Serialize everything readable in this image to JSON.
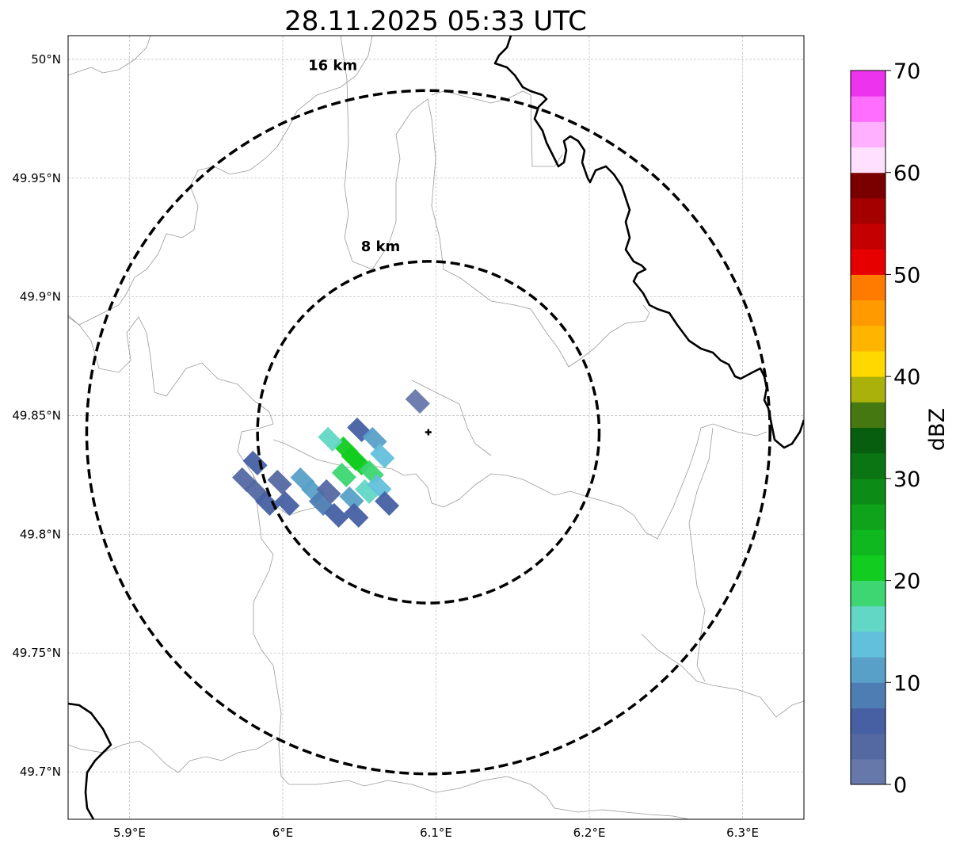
{
  "title": "28.11.2025 05:33 UTC",
  "map": {
    "lon_range": [
      5.86,
      6.34
    ],
    "lat_range": [
      49.68,
      50.01
    ],
    "lon_ticks": [
      {
        "value": 5.9,
        "label": "5.9°E"
      },
      {
        "value": 6.0,
        "label": "6°E"
      },
      {
        "value": 6.1,
        "label": "6.1°E"
      },
      {
        "value": 6.2,
        "label": "6.2°E"
      },
      {
        "value": 6.3,
        "label": "6.3°E"
      }
    ],
    "lat_ticks": [
      {
        "value": 49.7,
        "label": "49.7°N"
      },
      {
        "value": 49.75,
        "label": "49.75°N"
      },
      {
        "value": 49.8,
        "label": "49.8°N"
      },
      {
        "value": 49.85,
        "label": "49.85°N"
      },
      {
        "value": 49.9,
        "label": "49.9°N"
      },
      {
        "value": 49.95,
        "label": "49.95°N"
      },
      {
        "value": 50.0,
        "label": "50°N"
      }
    ],
    "radar_site": {
      "lon": 6.095,
      "lat": 49.843
    },
    "range_rings": [
      {
        "label": "8 km",
        "radius_km": 8
      },
      {
        "label": "16 km",
        "radius_km": 16
      }
    ]
  },
  "colorbar": {
    "label": "dBZ",
    "min": 0,
    "max": 70,
    "ticks": [
      {
        "value": 0,
        "label": "0"
      },
      {
        "value": 10,
        "label": "10"
      },
      {
        "value": 20,
        "label": "20"
      },
      {
        "value": 30,
        "label": "30"
      },
      {
        "value": 40,
        "label": "40"
      },
      {
        "value": 50,
        "label": "50"
      },
      {
        "value": 60,
        "label": "60"
      },
      {
        "value": 70,
        "label": "70"
      }
    ],
    "colors": [
      "#6677aa",
      "#5468a2",
      "#4660a3",
      "#4e7db3",
      "#58a0c8",
      "#63c0dc",
      "#63d7c5",
      "#3dd673",
      "#12cc20",
      "#10b820",
      "#0ea31a",
      "#0c8c16",
      "#0a7512",
      "#075e0e",
      "#457810",
      "#aab10a",
      "#ffd800",
      "#ffb400",
      "#ff9b00",
      "#ff7b00",
      "#e60000",
      "#c40000",
      "#a50000",
      "#7a0000",
      "#ffe0ff",
      "#ffb0ff",
      "#ff6eff",
      "#ee33ee"
    ]
  },
  "echoes": [
    {
      "lon": 5.975,
      "lat": 49.823,
      "dbz": 4
    },
    {
      "lon": 5.983,
      "lat": 49.818,
      "dbz": 3
    },
    {
      "lon": 5.99,
      "lat": 49.813,
      "dbz": 7
    },
    {
      "lon": 5.998,
      "lat": 49.822,
      "dbz": 4
    },
    {
      "lon": 6.003,
      "lat": 49.813,
      "dbz": 5
    },
    {
      "lon": 6.013,
      "lat": 49.823,
      "dbz": 11
    },
    {
      "lon": 6.02,
      "lat": 49.818,
      "dbz": 12
    },
    {
      "lon": 6.025,
      "lat": 49.813,
      "dbz": 9
    },
    {
      "lon": 6.03,
      "lat": 49.818,
      "dbz": 4
    },
    {
      "lon": 6.035,
      "lat": 49.808,
      "dbz": 5
    },
    {
      "lon": 6.04,
      "lat": 49.825,
      "dbz": 19
    },
    {
      "lon": 6.045,
      "lat": 49.815,
      "dbz": 10
    },
    {
      "lon": 6.048,
      "lat": 49.808,
      "dbz": 5
    },
    {
      "lon": 6.05,
      "lat": 49.83,
      "dbz": 21
    },
    {
      "lon": 6.055,
      "lat": 49.818,
      "dbz": 16
    },
    {
      "lon": 6.058,
      "lat": 49.826,
      "dbz": 18
    },
    {
      "lon": 6.063,
      "lat": 49.82,
      "dbz": 14
    },
    {
      "lon": 6.068,
      "lat": 49.813,
      "dbz": 7
    },
    {
      "lon": 6.041,
      "lat": 49.836,
      "dbz": 22
    },
    {
      "lon": 6.046,
      "lat": 49.832,
      "dbz": 20
    },
    {
      "lon": 6.031,
      "lat": 49.84,
      "dbz": 16
    },
    {
      "lon": 6.05,
      "lat": 49.844,
      "dbz": 6
    },
    {
      "lon": 6.06,
      "lat": 49.84,
      "dbz": 10
    },
    {
      "lon": 6.065,
      "lat": 49.833,
      "dbz": 13
    },
    {
      "lon": 6.088,
      "lat": 49.856,
      "dbz": 2
    },
    {
      "lon": 5.982,
      "lat": 49.83,
      "dbz": 6
    }
  ]
}
